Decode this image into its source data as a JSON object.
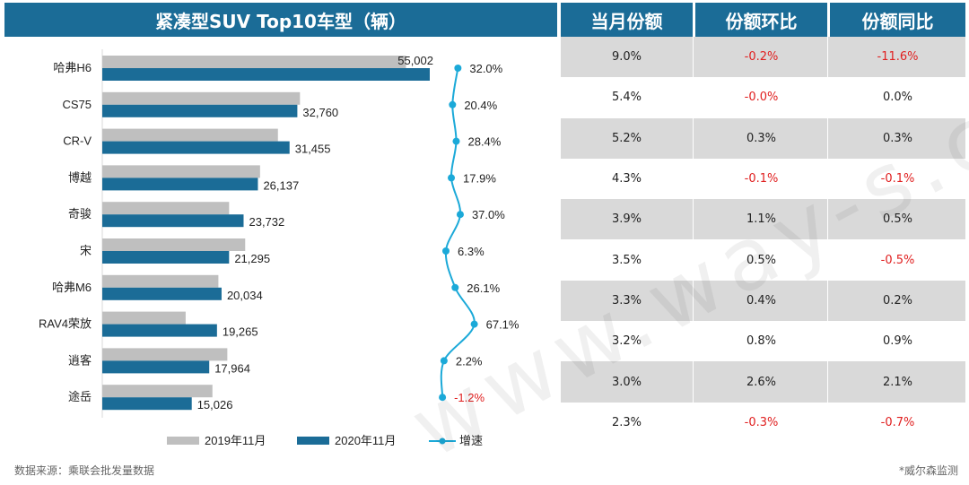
{
  "title": "紧凑型SUV Top10车型（辆）",
  "table": {
    "headers": [
      "当月份额",
      "份额环比",
      "份额同比"
    ],
    "rows": [
      [
        "9.0%",
        "-0.2%",
        "-11.6%"
      ],
      [
        "5.4%",
        "-0.0%",
        "0.0%"
      ],
      [
        "5.2%",
        "0.3%",
        "0.3%"
      ],
      [
        "4.3%",
        "-0.1%",
        "-0.1%"
      ],
      [
        "3.9%",
        "1.1%",
        "0.5%"
      ],
      [
        "3.5%",
        "0.5%",
        "-0.5%"
      ],
      [
        "3.3%",
        "0.4%",
        "0.2%"
      ],
      [
        "3.2%",
        "0.8%",
        "0.9%"
      ],
      [
        "3.0%",
        "2.6%",
        "2.1%"
      ],
      [
        "2.3%",
        "-0.3%",
        "-0.7%"
      ]
    ],
    "negative_color": "#e02020"
  },
  "chart_data": {
    "type": "bar",
    "orientation": "horizontal",
    "categories": [
      "哈弗H6",
      "CS75",
      "CR-V",
      "博越",
      "奇骏",
      "宋",
      "哈弗M6",
      "RAV4荣放",
      "逍客",
      "途岳"
    ],
    "series": [
      {
        "name": "2019年11月",
        "color": "#bfbfbf",
        "values": [
          51000,
          33200,
          29500,
          26500,
          21300,
          24000,
          19500,
          14000,
          21000,
          18500
        ]
      },
      {
        "name": "2020年11月",
        "color": "#1b6c97",
        "values": [
          55002,
          32760,
          31455,
          26137,
          23732,
          21295,
          20034,
          19265,
          17964,
          15026
        ]
      },
      {
        "name": "增速",
        "type": "line",
        "color": "#1ba9d8",
        "values": [
          32.0,
          20.4,
          28.4,
          17.9,
          37.0,
          6.3,
          26.1,
          67.1,
          2.2,
          -1.2
        ],
        "labels": [
          "32.0%",
          "20.4%",
          "28.4%",
          "17.9%",
          "37.0%",
          "6.3%",
          "26.1%",
          "67.1%",
          "2.2%",
          "-1.2%"
        ]
      }
    ],
    "value_labels": [
      "55,002",
      "32,760",
      "31,455",
      "26,137",
      "23,732",
      "21,295",
      "20,034",
      "19,265",
      "17,964",
      "15,026"
    ],
    "legend_position": "bottom"
  },
  "footer": {
    "source": "数据来源：乘联会批发量数据",
    "monitor": "*威尔森监测"
  },
  "watermark": "www.way-s.cn"
}
